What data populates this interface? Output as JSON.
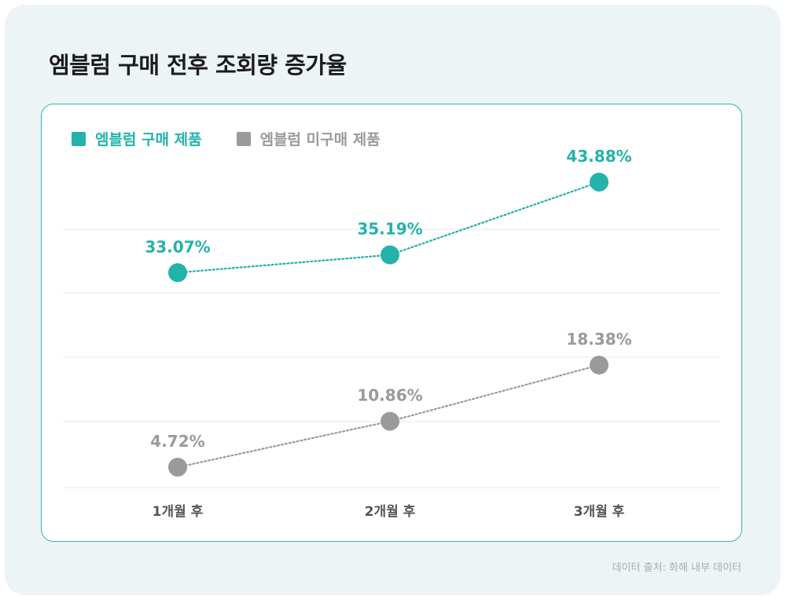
{
  "title": "엠블럼 구매 전후 조회량 증가율",
  "source": "데이터 출처: 화해 내부 데이터",
  "colors": {
    "purchased": "#22b3aa",
    "not_purchased": "#9a9a9c"
  },
  "chart_data": {
    "type": "line",
    "categories": [
      "1개월 후",
      "2개월 후",
      "3개월 후"
    ],
    "series": [
      {
        "name": "엠블럼 구매 제품",
        "values": [
          33.07,
          35.19,
          43.88
        ],
        "labels": [
          "33.07%",
          "35.19%",
          "43.88%"
        ]
      },
      {
        "name": "엠블럼 미구매 제품",
        "values": [
          4.72,
          10.86,
          18.38
        ],
        "labels": [
          "4.72%",
          "10.86%",
          "18.38%"
        ]
      }
    ],
    "unit": "%",
    "grid": true,
    "legend": "top-left"
  }
}
